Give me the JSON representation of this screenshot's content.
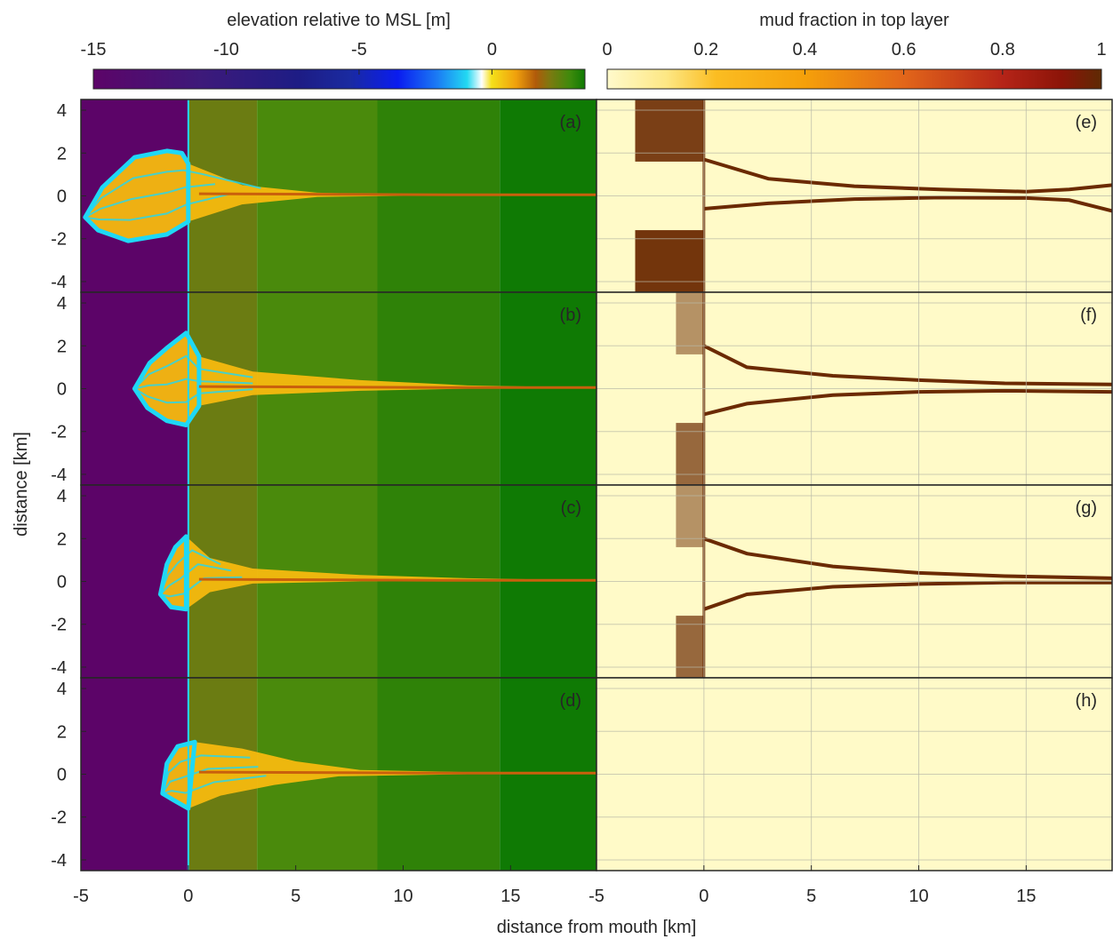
{
  "colorbars": {
    "elevation": {
      "label": "elevation relative to MSL [m]",
      "ticks": [
        -15,
        -10,
        -5,
        0
      ],
      "range": [
        -15,
        3.5
      ]
    },
    "mud": {
      "label": "mud fraction in top layer",
      "ticks": [
        "0",
        "0.2",
        "0.4",
        "0.6",
        "0.8",
        "1"
      ],
      "range": [
        0,
        1
      ]
    }
  },
  "axes": {
    "xlabel": "distance from mouth [km]",
    "ylabel": "distance [km]",
    "xlim": [
      -5,
      19
    ],
    "ylim": [
      -4.5,
      4.5
    ],
    "xticks_left": [
      "-5",
      "0",
      "5",
      "10",
      "15"
    ],
    "xticks_right": [
      "-5",
      "0",
      "5",
      "10",
      "15"
    ],
    "yticks": [
      "4",
      "2",
      "0",
      "-2",
      "-4"
    ]
  },
  "colors": {
    "deep_water": "#5c0468",
    "shallow_blue": "#1fd8f5",
    "sand_yellow": "#f5b90f",
    "floodplain_olive": "#6b7c12",
    "floodplain_green_1": "#4a8a0c",
    "floodplain_green_2": "#2f8208",
    "floodplain_green_3": "#0f7a04",
    "mud_background": "#fffac8",
    "mud_dark": "#6b2a02"
  },
  "chart_data": {
    "type": "heatmap",
    "panels": [
      {
        "label": "(a)",
        "variable": "elevation",
        "row": 1,
        "channel_mouth": [
          [
            -4.8,
            -1.0
          ],
          [
            -4.0,
            0.4
          ],
          [
            -2.5,
            1.8
          ],
          [
            -1.0,
            2.1
          ],
          [
            -0.3,
            2.0
          ],
          [
            0,
            1.5
          ],
          [
            2.5,
            0.5
          ],
          [
            6,
            0.15
          ],
          [
            10,
            0.05
          ],
          [
            15,
            0.05
          ],
          [
            19,
            0.05
          ]
        ],
        "channel_lower": [
          [
            -4.8,
            -1.0
          ],
          [
            -4.2,
            -1.6
          ],
          [
            -2.8,
            -2.1
          ],
          [
            -1.0,
            -1.8
          ],
          [
            0,
            -1.2
          ],
          [
            2.5,
            -0.4
          ],
          [
            6,
            -0.05
          ],
          [
            10,
            0
          ],
          [
            15,
            0
          ],
          [
            19,
            0
          ]
        ]
      },
      {
        "label": "(b)",
        "variable": "elevation",
        "row": 2,
        "channel_mouth": [
          [
            -2.5,
            0
          ],
          [
            -1.8,
            1.2
          ],
          [
            -1.0,
            1.9
          ],
          [
            -0.1,
            2.6
          ],
          [
            0.5,
            1.5
          ],
          [
            3,
            0.8
          ],
          [
            8,
            0.4
          ],
          [
            13,
            0.15
          ],
          [
            19,
            0.05
          ]
        ],
        "channel_lower": [
          [
            -2.5,
            0
          ],
          [
            -1.9,
            -0.9
          ],
          [
            -1.0,
            -1.5
          ],
          [
            -0.1,
            -1.7
          ],
          [
            0.5,
            -0.8
          ],
          [
            3,
            -0.3
          ],
          [
            8,
            -0.1
          ],
          [
            13,
            0
          ],
          [
            19,
            0
          ]
        ]
      },
      {
        "label": "(c)",
        "variable": "elevation",
        "row": 3,
        "channel_mouth": [
          [
            -1.3,
            -0.6
          ],
          [
            -1.0,
            0.8
          ],
          [
            -0.6,
            1.6
          ],
          [
            -0.1,
            2.1
          ],
          [
            1,
            1.1
          ],
          [
            3,
            0.6
          ],
          [
            8,
            0.3
          ],
          [
            13,
            0.15
          ],
          [
            19,
            0.05
          ]
        ],
        "channel_lower": [
          [
            -1.3,
            -0.6
          ],
          [
            -0.8,
            -1.2
          ],
          [
            -0.1,
            -1.3
          ],
          [
            1,
            -0.5
          ],
          [
            3,
            -0.1
          ],
          [
            8,
            0
          ],
          [
            13,
            0
          ],
          [
            19,
            0
          ]
        ]
      },
      {
        "label": "(d)",
        "variable": "elevation",
        "row": 4,
        "channel_mouth": [
          [
            -1.2,
            -0.9
          ],
          [
            -1.0,
            0.5
          ],
          [
            -0.5,
            1.3
          ],
          [
            0.3,
            1.5
          ],
          [
            2.5,
            1.2
          ],
          [
            5,
            0.6
          ],
          [
            8,
            0.2
          ],
          [
            13,
            0.1
          ],
          [
            19,
            0.05
          ]
        ],
        "channel_lower": [
          [
            -1.2,
            -0.9
          ],
          [
            -0.7,
            -1.2
          ],
          [
            0,
            -1.6
          ],
          [
            1.5,
            -1.0
          ],
          [
            4,
            -0.5
          ],
          [
            7,
            -0.1
          ],
          [
            13,
            0
          ],
          [
            19,
            0
          ]
        ]
      },
      {
        "label": "(e)",
        "variable": "mud",
        "row": 1,
        "upper_bank": [
          [
            0,
            1.7
          ],
          [
            3,
            0.8
          ],
          [
            7,
            0.45
          ],
          [
            11,
            0.3
          ],
          [
            15,
            0.2
          ],
          [
            17,
            0.3
          ],
          [
            19,
            0.5
          ]
        ],
        "lower_bank": [
          [
            0,
            -0.6
          ],
          [
            3,
            -0.35
          ],
          [
            7,
            -0.15
          ],
          [
            11,
            -0.08
          ],
          [
            15,
            -0.1
          ],
          [
            17,
            -0.2
          ],
          [
            19,
            -0.7
          ]
        ]
      },
      {
        "label": "(f)",
        "variable": "mud",
        "row": 2,
        "upper_bank": [
          [
            0,
            2.0
          ],
          [
            2,
            1.0
          ],
          [
            6,
            0.6
          ],
          [
            10,
            0.4
          ],
          [
            14,
            0.25
          ],
          [
            19,
            0.2
          ]
        ],
        "lower_bank": [
          [
            0,
            -1.2
          ],
          [
            2,
            -0.7
          ],
          [
            6,
            -0.3
          ],
          [
            10,
            -0.15
          ],
          [
            14,
            -0.1
          ],
          [
            19,
            -0.15
          ]
        ]
      },
      {
        "label": "(g)",
        "variable": "mud",
        "row": 3,
        "upper_bank": [
          [
            0,
            2.0
          ],
          [
            2,
            1.3
          ],
          [
            6,
            0.7
          ],
          [
            10,
            0.4
          ],
          [
            14,
            0.25
          ],
          [
            19,
            0.15
          ]
        ],
        "lower_bank": [
          [
            0,
            -1.3
          ],
          [
            2,
            -0.6
          ],
          [
            6,
            -0.25
          ],
          [
            10,
            -0.12
          ],
          [
            14,
            -0.05
          ],
          [
            19,
            -0.05
          ]
        ]
      },
      {
        "label": "(h)",
        "variable": "mud",
        "row": 4,
        "upper_bank": [],
        "lower_bank": []
      }
    ]
  }
}
